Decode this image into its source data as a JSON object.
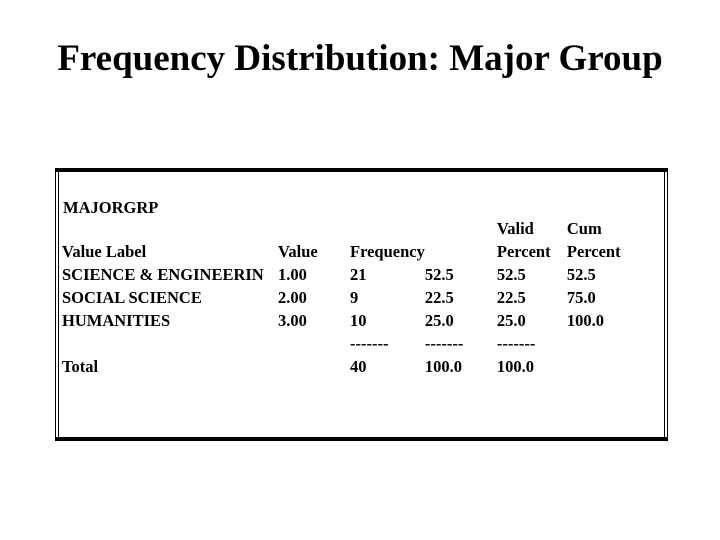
{
  "title": "Frequency Distribution: Major Group",
  "spss_output": {
    "variable": "MAJORGRP",
    "header_line1": {
      "valid": "Valid",
      "cum": "Cum"
    },
    "header_line2": {
      "value_label": "Value Label",
      "value": "Value",
      "frequency": "Frequency",
      "valid_percent": "Percent",
      "cum_percent": "Percent"
    },
    "rows": [
      {
        "label": "SCIENCE & ENGINEERIN",
        "value": "1.00",
        "frequency": "21",
        "percent": "52.5",
        "valid_percent": "52.5",
        "cum_percent": "52.5"
      },
      {
        "label": "SOCIAL SCIENCE",
        "value": "2.00",
        "frequency": "9",
        "percent": "22.5",
        "valid_percent": "22.5",
        "cum_percent": "75.0"
      },
      {
        "label": "HUMANITIES",
        "value": "3.00",
        "frequency": "10",
        "percent": "25.0",
        "valid_percent": "25.0",
        "cum_percent": "100.0"
      }
    ],
    "separator": {
      "frequency": "-------",
      "percent": "-------",
      "valid_percent": "-------"
    },
    "total": {
      "label": "Total",
      "frequency": "40",
      "percent": "100.0",
      "valid_percent": "100.0"
    }
  }
}
